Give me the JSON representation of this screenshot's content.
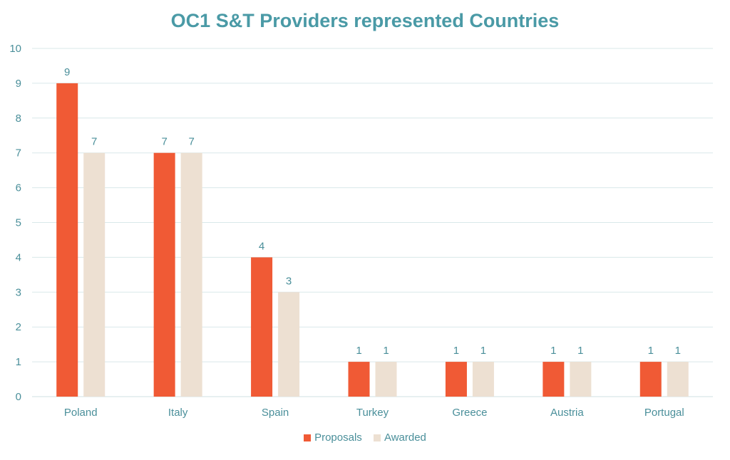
{
  "chart_data": {
    "type": "bar",
    "title": "OC1 S&T Providers represented Countries",
    "categories": [
      "Poland",
      "Italy",
      "Spain",
      "Turkey",
      "Greece",
      "Austria",
      "Portugal"
    ],
    "series": [
      {
        "name": "Proposals",
        "values": [
          9,
          7,
          4,
          1,
          1,
          1,
          1
        ],
        "color": "#f05a35"
      },
      {
        "name": "Awarded",
        "values": [
          7,
          7,
          3,
          1,
          1,
          1,
          1
        ],
        "color": "#ede0d2"
      }
    ],
    "ylim": [
      0,
      10
    ],
    "yticks": [
      "0",
      "1",
      "2",
      "3",
      "4",
      "5",
      "6",
      "7",
      "8",
      "9",
      "10"
    ],
    "grid": true,
    "legend_position": "bottom",
    "data_labels": true,
    "text_color": "#4a8f9a"
  }
}
